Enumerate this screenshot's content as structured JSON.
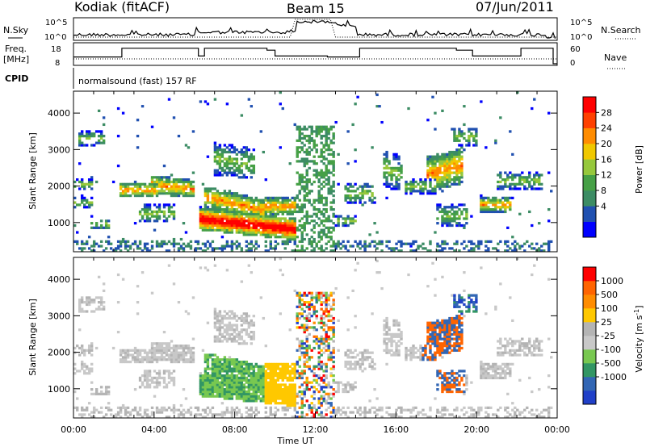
{
  "header": {
    "station": "Kodiak (fitACF)",
    "beam": "Beam 15",
    "date": "07/Jun/2011"
  },
  "panels": {
    "nsky_label": "N.Sky",
    "nsky_top": "10^5",
    "nsky_bottom": "10^0",
    "nsearch_label": "N.Search",
    "nsearch_top": "10^5",
    "nsearch_bottom": "10^0",
    "freq_label": "Freq.",
    "freq_unit": "[MHz]",
    "freq_ticks": [
      "18",
      "8"
    ],
    "nave_label": "Nave",
    "nave_ticks": [
      "60",
      "0"
    ],
    "cpid_label": "CPID",
    "cpid_value": "normalsound (fast) 157 RF"
  },
  "colors": {
    "power_scale": [
      "#0000ff",
      "#2050b0",
      "#3c8c64",
      "#46a046",
      "#96c83c",
      "#f0c800",
      "#ff8c00",
      "#ff4000",
      "#ff0000"
    ],
    "velocity_scale": [
      "#2040c8",
      "#3266b4",
      "#329664",
      "#78c850",
      "#c8c8c8",
      "#b4b4b4",
      "#ffc800",
      "#ff8c00",
      "#ff6400",
      "#ff0000"
    ],
    "gray": "#bebebe"
  },
  "chart_data": [
    {
      "type": "heatmap",
      "name": "power",
      "xlabel": "",
      "ylabel": "Slant Range [km]",
      "xlim": [
        "00:00",
        "24:00"
      ],
      "ylim": [
        200,
        4600
      ],
      "yticks": [
        "1000",
        "2000",
        "3000",
        "4000"
      ],
      "colorbar": {
        "label": "Power [dB]",
        "ticks": [
          "28",
          "24",
          "20",
          "16",
          "12",
          "8",
          "4"
        ]
      }
    },
    {
      "type": "heatmap",
      "name": "velocity",
      "xlabel": "Time UT",
      "ylabel": "Slant Range [km]",
      "xlim": [
        "00:00",
        "24:00"
      ],
      "ylim": [
        200,
        4600
      ],
      "yticks": [
        "1000",
        "2000",
        "3000",
        "4000"
      ],
      "xticks": [
        "00:00",
        "04:00",
        "08:00",
        "12:00",
        "16:00",
        "20:00",
        "00:00"
      ],
      "colorbar": {
        "label": "Velocity [m s^-1]",
        "ticks": [
          "1000",
          "500",
          "100",
          "25",
          "-25",
          "-100",
          "-500",
          "-1000"
        ]
      }
    }
  ]
}
